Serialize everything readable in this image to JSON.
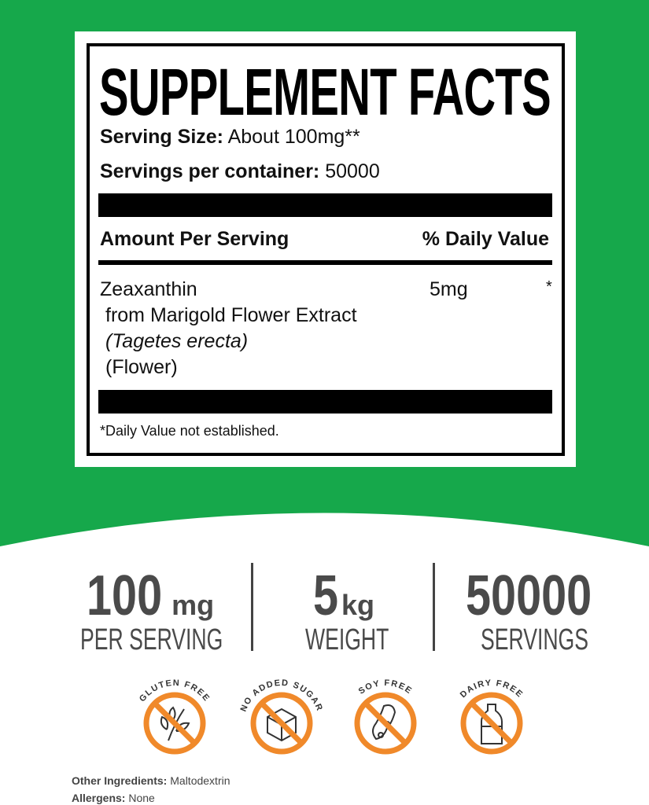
{
  "colors": {
    "green": "#16a84b",
    "orange": "#f0892a",
    "text_gray": "#4a4a4a"
  },
  "facts": {
    "title": "SUPPLEMENT FACTS",
    "serving_size_label": "Serving Size:",
    "serving_size_value": "About 100mg**",
    "servings_label": "Servings per container:",
    "servings_value": "50000",
    "amount_header": "Amount Per Serving",
    "dv_header": "% Daily Value",
    "ingredient": {
      "name": "Zeaxanthin",
      "source": "from Marigold Flower Extract",
      "latin": "(Tagetes erecta)",
      "part": "(Flower)",
      "amount": "5mg",
      "dv": "*"
    },
    "footnote": "*Daily Value not established."
  },
  "stats": [
    {
      "value": "100",
      "unit": "mg",
      "label": "PER SERVING"
    },
    {
      "value": "5",
      "unit": "kg",
      "label": "WEIGHT"
    },
    {
      "value": "50000",
      "unit": "",
      "label": "SERVINGS"
    }
  ],
  "badges": [
    {
      "label": "GLUTEN FREE",
      "icon": "wheat-icon"
    },
    {
      "label": "NO ADDED SUGAR",
      "icon": "sugar-cube-icon"
    },
    {
      "label": "SOY FREE",
      "icon": "soybean-icon"
    },
    {
      "label": "DAIRY FREE",
      "icon": "milk-bottle-icon"
    }
  ],
  "footer": {
    "other_label": "Other Ingredients:",
    "other_value": "Maltodextrin",
    "allergens_label": "Allergens:",
    "allergens_value": "None"
  }
}
